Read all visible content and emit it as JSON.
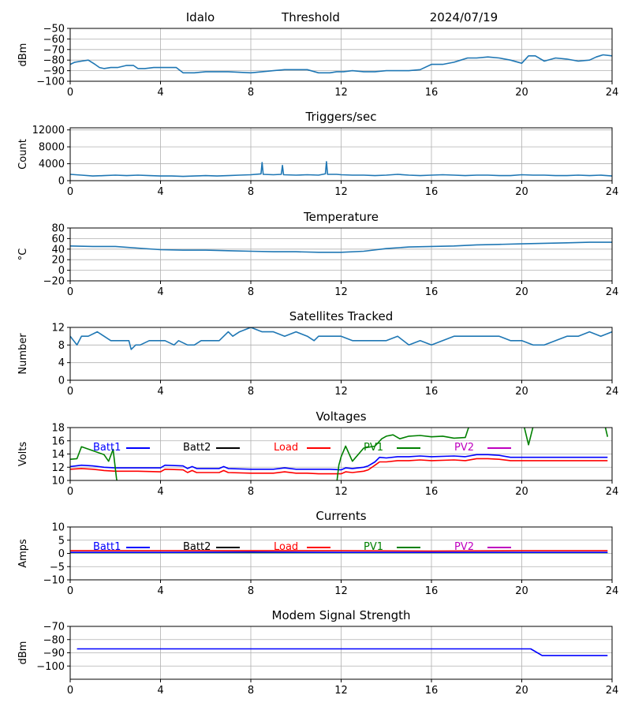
{
  "header": {
    "site": "Idalo",
    "mode": "Threshold",
    "date": "2024/07/19"
  },
  "colors": {
    "default_line": "#1f77b4",
    "grid": "#b0b0b0",
    "batt1": "#0000ff",
    "batt2": "#000000",
    "load": "#ff0000",
    "pv1": "#008000",
    "pv2": "#bf00bf"
  },
  "x_axis": {
    "range": [
      0,
      24
    ],
    "ticks": [
      "0",
      "4",
      "8",
      "12",
      "16",
      "20",
      "24"
    ]
  },
  "chart_data": [
    {
      "id": "threshold",
      "type": "line",
      "title": "",
      "xlabel": "",
      "ylabel": "dBm",
      "ylim": [
        -100,
        -50
      ],
      "yticks": [
        "−50",
        "−60",
        "−70",
        "−80",
        "−90",
        "−100"
      ],
      "ytick_values": [
        -50,
        -60,
        -70,
        -80,
        -90,
        -100
      ],
      "series": [
        {
          "color": "#1f77b4",
          "x": [
            0,
            0.2,
            0.5,
            0.8,
            1.1,
            1.3,
            1.5,
            1.8,
            2.1,
            2.5,
            2.8,
            3.0,
            3.3,
            3.7,
            4.0,
            4.3,
            4.7,
            5.0,
            5.5,
            6.0,
            7.0,
            8.0,
            8.5,
            9.0,
            9.5,
            10.0,
            10.5,
            11.0,
            11.5,
            11.8,
            12.1,
            12.5,
            13.0,
            13.5,
            14.0,
            14.5,
            15.0,
            15.5,
            16.0,
            16.5,
            17.0,
            17.3,
            17.6,
            18.0,
            18.5,
            19.0,
            19.5,
            20.0,
            20.3,
            20.6,
            21.0,
            21.5,
            22.0,
            22.5,
            23.0,
            23.3,
            23.6,
            24.0
          ],
          "y": [
            -84,
            -82,
            -81,
            -80,
            -84,
            -87,
            -88,
            -87,
            -87,
            -85,
            -85,
            -88,
            -88,
            -87,
            -87,
            -87,
            -87,
            -92,
            -92,
            -91,
            -91,
            -92,
            -91,
            -90,
            -89,
            -89,
            -89,
            -92,
            -92,
            -91,
            -91,
            -90,
            -91,
            -91,
            -90,
            -90,
            -90,
            -89,
            -84,
            -84,
            -82,
            -80,
            -78,
            -78,
            -77,
            -78,
            -80,
            -83,
            -76,
            -76,
            -81,
            -78,
            -79,
            -81,
            -80,
            -77,
            -75,
            -76
          ]
        }
      ]
    },
    {
      "id": "triggers",
      "type": "line",
      "title": "Triggers/sec",
      "xlabel": "",
      "ylabel": "Count",
      "ylim": [
        0,
        12500
      ],
      "yticks": [
        "0",
        "4000",
        "8000",
        "12000"
      ],
      "ytick_values": [
        0,
        4000,
        8000,
        12000
      ],
      "series": [
        {
          "color": "#1f77b4",
          "x": [
            0,
            0.5,
            1.0,
            1.5,
            2.0,
            2.5,
            3.0,
            3.5,
            4.0,
            4.5,
            5.0,
            5.5,
            6.0,
            6.5,
            7.0,
            7.5,
            8.0,
            8.45,
            8.5,
            8.55,
            9.0,
            9.35,
            9.4,
            9.45,
            10.0,
            10.5,
            11.0,
            11.3,
            11.35,
            11.4,
            11.8,
            12.0,
            12.5,
            13.0,
            13.5,
            14.0,
            14.5,
            15.0,
            15.5,
            16.0,
            16.5,
            17.0,
            17.5,
            18.0,
            18.5,
            19.0,
            19.5,
            20.0,
            20.5,
            21.0,
            21.5,
            22.0,
            22.5,
            23.0,
            23.5,
            24.0
          ],
          "y": [
            1500,
            1300,
            1100,
            1200,
            1300,
            1200,
            1300,
            1200,
            1100,
            1100,
            1000,
            1100,
            1200,
            1100,
            1200,
            1300,
            1400,
            1600,
            4300,
            1500,
            1400,
            1500,
            3600,
            1400,
            1300,
            1400,
            1300,
            1600,
            4500,
            1500,
            1500,
            1400,
            1300,
            1300,
            1200,
            1300,
            1500,
            1300,
            1200,
            1300,
            1400,
            1300,
            1200,
            1300,
            1300,
            1200,
            1200,
            1400,
            1300,
            1300,
            1200,
            1200,
            1300,
            1200,
            1300,
            1100
          ]
        }
      ]
    },
    {
      "id": "temperature",
      "type": "line",
      "title": "Temperature",
      "xlabel": "",
      "ylabel": "°C",
      "ylim": [
        -20,
        80
      ],
      "yticks": [
        "−20",
        "0",
        "20",
        "40",
        "60",
        "80"
      ],
      "ytick_values": [
        -20,
        0,
        20,
        40,
        60,
        80
      ],
      "series": [
        {
          "color": "#1f77b4",
          "x": [
            0,
            1,
            2,
            3,
            4,
            5,
            6,
            7,
            8,
            9,
            10,
            11,
            12,
            13,
            14,
            15,
            16,
            17,
            18,
            19,
            20,
            21,
            22,
            23,
            24
          ],
          "y": [
            46,
            45,
            45,
            42,
            39,
            38,
            38,
            37,
            36,
            35,
            35,
            34,
            34,
            36,
            41,
            44,
            45,
            46,
            48,
            49,
            50,
            51,
            52,
            53,
            53
          ]
        }
      ]
    },
    {
      "id": "satellites",
      "type": "line",
      "title": "Satellites Tracked",
      "xlabel": "",
      "ylabel": "Number",
      "ylim": [
        0,
        12
      ],
      "yticks": [
        "0",
        "4",
        "8",
        "12"
      ],
      "ytick_values": [
        0,
        4,
        8,
        12
      ],
      "series": [
        {
          "color": "#1f77b4",
          "x": [
            0,
            0.3,
            0.5,
            0.8,
            1.2,
            1.5,
            1.8,
            2.0,
            2.6,
            2.7,
            2.9,
            3.1,
            3.5,
            3.8,
            4.2,
            4.6,
            4.8,
            5.2,
            5.5,
            5.8,
            6.2,
            6.6,
            7.0,
            7.2,
            7.5,
            8.0,
            8.5,
            9.0,
            9.5,
            10.0,
            10.5,
            10.8,
            11.0,
            11.5,
            12.0,
            12.5,
            13.0,
            13.5,
            14.0,
            14.5,
            15.0,
            15.5,
            16.0,
            16.5,
            17.0,
            17.5,
            18.0,
            18.5,
            19.0,
            19.5,
            20.0,
            20.5,
            21.0,
            21.5,
            22.0,
            22.5,
            23.0,
            23.5,
            24.0
          ],
          "y": [
            10,
            8,
            10,
            10,
            11,
            10,
            9,
            9,
            9,
            7,
            8,
            8,
            9,
            9,
            9,
            8,
            9,
            8,
            8,
            9,
            9,
            9,
            11,
            10,
            11,
            12,
            11,
            11,
            10,
            11,
            10,
            9,
            10,
            10,
            10,
            9,
            9,
            9,
            9,
            10,
            8,
            9,
            8,
            9,
            10,
            10,
            10,
            10,
            10,
            9,
            9,
            8,
            8,
            9,
            10,
            10,
            11,
            10,
            11
          ]
        }
      ]
    },
    {
      "id": "voltages",
      "type": "line",
      "title": "Voltages",
      "xlabel": "",
      "ylabel": "Volts",
      "ylim": [
        10,
        18
      ],
      "yticks": [
        "10",
        "12",
        "14",
        "16",
        "18"
      ],
      "ytick_values": [
        10,
        12,
        14,
        16,
        18
      ],
      "legend": [
        {
          "label": "Batt1",
          "color": "#0000ff"
        },
        {
          "label": "Batt2",
          "color": "#000000"
        },
        {
          "label": "Load",
          "color": "#ff0000"
        },
        {
          "label": "PV1",
          "color": "#008000"
        },
        {
          "label": "PV2",
          "color": "#bf00bf"
        }
      ],
      "series": [
        {
          "name": "Batt1",
          "color": "#0000ff",
          "x": [
            0,
            0.5,
            1,
            1.5,
            2,
            3,
            4,
            4.2,
            5,
            5.2,
            5.4,
            5.6,
            6,
            6.6,
            6.8,
            7,
            8,
            9,
            9.5,
            10,
            10.5,
            11,
            11.5,
            12,
            12.2,
            12.5,
            13,
            13.2,
            13.5,
            13.7,
            14,
            14.5,
            15,
            15.5,
            16,
            17,
            17.5,
            18,
            18.5,
            19,
            19.5,
            20,
            21,
            22,
            23,
            23.8
          ],
          "y": [
            12.1,
            12.3,
            12.2,
            12.0,
            11.9,
            11.9,
            11.9,
            12.3,
            12.2,
            11.8,
            12.1,
            11.8,
            11.8,
            11.8,
            12.1,
            11.8,
            11.7,
            11.7,
            11.9,
            11.7,
            11.7,
            11.7,
            11.7,
            11.6,
            11.9,
            11.8,
            12.0,
            12.2,
            12.8,
            13.5,
            13.4,
            13.6,
            13.6,
            13.7,
            13.6,
            13.7,
            13.6,
            13.9,
            13.9,
            13.8,
            13.5,
            13.5,
            13.5,
            13.5,
            13.5,
            13.5
          ]
        },
        {
          "name": "Load",
          "color": "#ff0000",
          "x": [
            0,
            0.5,
            1,
            1.5,
            2,
            3,
            4,
            4.2,
            5,
            5.2,
            5.4,
            5.6,
            6,
            6.6,
            6.8,
            7,
            8,
            9,
            9.5,
            10,
            10.5,
            11,
            11.5,
            12,
            12.2,
            12.5,
            13,
            13.2,
            13.5,
            13.7,
            14,
            14.5,
            15,
            15.5,
            16,
            17,
            17.5,
            18,
            18.5,
            19,
            19.5,
            20,
            21,
            22,
            23,
            23.8
          ],
          "y": [
            11.7,
            11.8,
            11.7,
            11.5,
            11.4,
            11.4,
            11.3,
            11.7,
            11.6,
            11.2,
            11.5,
            11.2,
            11.2,
            11.2,
            11.5,
            11.2,
            11.1,
            11.1,
            11.3,
            11.1,
            11.1,
            11.0,
            11.0,
            11.0,
            11.3,
            11.2,
            11.4,
            11.6,
            12.3,
            12.8,
            12.8,
            13.0,
            13.0,
            13.1,
            13.0,
            13.1,
            13.0,
            13.3,
            13.3,
            13.2,
            13.0,
            13.0,
            13.0,
            13.0,
            13.0,
            13.0
          ]
        },
        {
          "name": "PV1",
          "color": "#008000",
          "x": [
            0,
            0.3,
            0.5,
            1,
            1.5,
            1.7,
            1.9,
            2.05,
            2.1,
            11.8,
            11.9,
            12,
            12.2,
            12.5,
            13,
            13.5,
            13.8,
            14,
            14.3,
            14.6,
            15,
            15.5,
            16,
            16.5,
            17,
            17.5,
            17.7,
            17.8,
            19.9,
            20.1,
            20.3,
            20.5,
            20.6,
            23.6,
            23.8
          ],
          "y": [
            13.2,
            13.3,
            15.1,
            14.5,
            13.9,
            12.9,
            14.7,
            10.3,
            9.5,
            9.5,
            12.3,
            13.6,
            15.2,
            12.9,
            14.9,
            15.2,
            16.3,
            16.7,
            16.9,
            16.3,
            16.7,
            16.8,
            16.6,
            16.7,
            16.4,
            16.5,
            18.6,
            19.5,
            19.5,
            18.2,
            15.4,
            18.1,
            19.5,
            19.5,
            16.6
          ]
        }
      ]
    },
    {
      "id": "currents",
      "type": "line",
      "title": "Currents",
      "xlabel": "",
      "ylabel": "Amps",
      "ylim": [
        -10,
        10
      ],
      "yticks": [
        "−10",
        "−5",
        "0",
        "5",
        "10"
      ],
      "ytick_values": [
        -10,
        -5,
        0,
        5,
        10
      ],
      "legend": [
        {
          "label": "Batt1",
          "color": "#0000ff"
        },
        {
          "label": "Batt2",
          "color": "#000000"
        },
        {
          "label": "Load",
          "color": "#ff0000"
        },
        {
          "label": "PV1",
          "color": "#008000"
        },
        {
          "label": "PV2",
          "color": "#bf00bf"
        }
      ],
      "series": [
        {
          "name": "Load",
          "color": "#ff0000",
          "x": [
            0,
            4,
            8,
            12,
            16,
            20,
            23.8
          ],
          "y": [
            1.0,
            1.0,
            1.0,
            1.0,
            0.9,
            1.0,
            1.0
          ]
        },
        {
          "name": "PV1",
          "color": "#008000",
          "x": [
            0,
            4,
            8,
            12,
            16,
            20,
            23.8
          ],
          "y": [
            0.3,
            0.3,
            0.3,
            0.3,
            0.3,
            0.3,
            0.3
          ]
        },
        {
          "name": "Batt1",
          "color": "#0000ff",
          "x": [
            0,
            4,
            8,
            12,
            16,
            20,
            23.8
          ],
          "y": [
            0.4,
            0.4,
            0.5,
            0.4,
            0.4,
            0.4,
            0.4
          ]
        }
      ]
    },
    {
      "id": "modem",
      "type": "line",
      "title": "Modem Signal Strength",
      "xlabel": "",
      "ylabel": "dBm",
      "ylim": [
        -110,
        -70
      ],
      "yticks": [
        "−70",
        "−80",
        "−90",
        "−100"
      ],
      "ytick_values": [
        -70,
        -80,
        -90,
        -100
      ],
      "series": [
        {
          "color": "#0000ff",
          "x": [
            0.3,
            20.4,
            20.9,
            23.8
          ],
          "y": [
            -87,
            -87,
            -92,
            -92
          ]
        }
      ]
    }
  ]
}
